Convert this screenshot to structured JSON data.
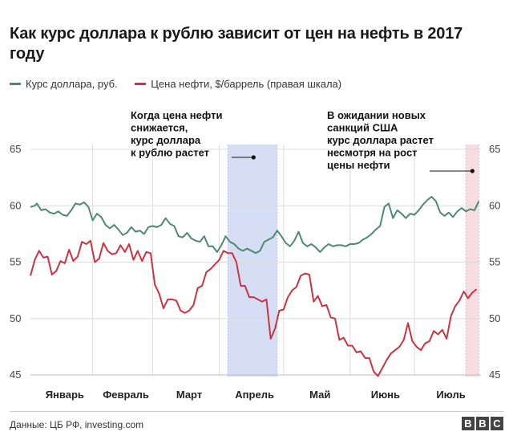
{
  "title": "Как курс доллара к рублю зависит от цен на нефть в 2017 году",
  "legend": [
    {
      "label": "Курс доллара, руб.",
      "color": "#4e8a71"
    },
    {
      "label": "Цена нефти, $/баррель (правая шкала)",
      "color": "#cc3340"
    }
  ],
  "source": "Данные: ЦБ РФ, investing.com",
  "logo": [
    "B",
    "B",
    "C"
  ],
  "chart_data": {
    "type": "line",
    "x_start": "2017-01-03",
    "x_end": "2017-07-31",
    "months": [
      {
        "label": "Январь",
        "start": "2017-01-01"
      },
      {
        "label": "Февраль",
        "start": "2017-02-01"
      },
      {
        "label": "Март",
        "start": "2017-03-01"
      },
      {
        "label": "Апрель",
        "start": "2017-04-01"
      },
      {
        "label": "Май",
        "start": "2017-05-01"
      },
      {
        "label": "Июнь",
        "start": "2017-06-01"
      },
      {
        "label": "Июль",
        "start": "2017-07-01"
      }
    ],
    "y_left": {
      "min": 45,
      "max": 65,
      "ticks": [
        45,
        50,
        55,
        60,
        65
      ]
    },
    "y_right": {
      "min": 45,
      "max": 65,
      "ticks": [
        45,
        50,
        55,
        60,
        65
      ]
    },
    "grid": true,
    "highlights": [
      {
        "from": "2017-04-05",
        "to": "2017-04-28",
        "color": "#d6def5"
      },
      {
        "from": "2017-07-25",
        "to": "2017-07-31",
        "color": "#f8dde0"
      }
    ],
    "annotations": [
      {
        "lines": [
          "Когда цена нефти",
          "снижается,",
          "курс доллара",
          "к рублю растет"
        ],
        "point": "2017-04-17"
      },
      {
        "lines": [
          "В ожидании новых",
          "санкций США",
          "курс доллара растет",
          "несмотря на рост",
          "цены нефти"
        ],
        "point": "2017-07-28"
      }
    ],
    "series": [
      {
        "name": "Курс доллара, руб.",
        "axis": "left",
        "color": "#4e8a71",
        "points": [
          [
            "2017-01-03",
            59.9
          ],
          [
            "2017-01-05",
            60.0
          ],
          [
            "2017-01-06",
            60.2
          ],
          [
            "2017-01-08",
            59.6
          ],
          [
            "2017-01-10",
            59.7
          ],
          [
            "2017-01-12",
            59.4
          ],
          [
            "2017-01-14",
            59.3
          ],
          [
            "2017-01-16",
            59.5
          ],
          [
            "2017-01-18",
            59.2
          ],
          [
            "2017-01-20",
            59.1
          ],
          [
            "2017-01-22",
            59.6
          ],
          [
            "2017-01-24",
            60.2
          ],
          [
            "2017-01-26",
            60.1
          ],
          [
            "2017-01-28",
            60.3
          ],
          [
            "2017-01-30",
            59.9
          ],
          [
            "2017-02-01",
            58.7
          ],
          [
            "2017-02-03",
            59.3
          ],
          [
            "2017-02-05",
            59.0
          ],
          [
            "2017-02-07",
            58.3
          ],
          [
            "2017-02-09",
            58.0
          ],
          [
            "2017-02-11",
            58.3
          ],
          [
            "2017-02-13",
            57.9
          ],
          [
            "2017-02-15",
            57.4
          ],
          [
            "2017-02-17",
            57.6
          ],
          [
            "2017-02-19",
            58.1
          ],
          [
            "2017-02-21",
            57.7
          ],
          [
            "2017-02-23",
            57.8
          ],
          [
            "2017-02-25",
            57.5
          ],
          [
            "2017-02-27",
            58.1
          ],
          [
            "2017-03-01",
            58.2
          ],
          [
            "2017-03-03",
            58.1
          ],
          [
            "2017-03-05",
            58.3
          ],
          [
            "2017-03-07",
            58.9
          ],
          [
            "2017-03-09",
            58.4
          ],
          [
            "2017-03-11",
            58.2
          ],
          [
            "2017-03-13",
            57.3
          ],
          [
            "2017-03-15",
            57.2
          ],
          [
            "2017-03-17",
            57.6
          ],
          [
            "2017-03-19",
            57.1
          ],
          [
            "2017-03-21",
            56.9
          ],
          [
            "2017-03-23",
            56.8
          ],
          [
            "2017-03-25",
            57.3
          ],
          [
            "2017-03-27",
            56.4
          ],
          [
            "2017-03-29",
            56.4
          ],
          [
            "2017-03-31",
            55.9
          ],
          [
            "2017-04-02",
            56.5
          ],
          [
            "2017-04-04",
            57.3
          ],
          [
            "2017-04-06",
            56.8
          ],
          [
            "2017-04-08",
            56.6
          ],
          [
            "2017-04-10",
            56.2
          ],
          [
            "2017-04-12",
            56.0
          ],
          [
            "2017-04-14",
            56.2
          ],
          [
            "2017-04-16",
            56.0
          ],
          [
            "2017-04-18",
            55.8
          ],
          [
            "2017-04-20",
            56.0
          ],
          [
            "2017-04-22",
            56.8
          ],
          [
            "2017-04-24",
            57.0
          ],
          [
            "2017-04-26",
            57.2
          ],
          [
            "2017-04-28",
            57.8
          ],
          [
            "2017-04-30",
            57.3
          ],
          [
            "2017-05-02",
            56.7
          ],
          [
            "2017-05-04",
            56.4
          ],
          [
            "2017-05-06",
            56.9
          ],
          [
            "2017-05-08",
            57.7
          ],
          [
            "2017-05-10",
            56.7
          ],
          [
            "2017-05-12",
            56.4
          ],
          [
            "2017-05-14",
            56.6
          ],
          [
            "2017-05-16",
            56.3
          ],
          [
            "2017-05-18",
            55.9
          ],
          [
            "2017-05-20",
            56.3
          ],
          [
            "2017-05-22",
            56.6
          ],
          [
            "2017-05-24",
            56.4
          ],
          [
            "2017-05-26",
            56.5
          ],
          [
            "2017-05-28",
            56.5
          ],
          [
            "2017-05-30",
            56.4
          ],
          [
            "2017-06-01",
            56.6
          ],
          [
            "2017-06-03",
            56.6
          ],
          [
            "2017-06-05",
            56.7
          ],
          [
            "2017-06-07",
            57.0
          ],
          [
            "2017-06-09",
            57.2
          ],
          [
            "2017-06-11",
            57.5
          ],
          [
            "2017-06-13",
            57.9
          ],
          [
            "2017-06-15",
            58.2
          ],
          [
            "2017-06-17",
            59.9
          ],
          [
            "2017-06-19",
            60.2
          ],
          [
            "2017-06-21",
            58.9
          ],
          [
            "2017-06-23",
            59.6
          ],
          [
            "2017-06-25",
            59.3
          ],
          [
            "2017-06-27",
            58.9
          ],
          [
            "2017-06-29",
            59.3
          ],
          [
            "2017-07-01",
            59.2
          ],
          [
            "2017-07-03",
            59.6
          ],
          [
            "2017-07-05",
            60.1
          ],
          [
            "2017-07-07",
            60.5
          ],
          [
            "2017-07-09",
            60.8
          ],
          [
            "2017-07-11",
            60.4
          ],
          [
            "2017-07-13",
            59.4
          ],
          [
            "2017-07-15",
            59.1
          ],
          [
            "2017-07-17",
            59.4
          ],
          [
            "2017-07-19",
            59.0
          ],
          [
            "2017-07-21",
            59.5
          ],
          [
            "2017-07-23",
            59.8
          ],
          [
            "2017-07-25",
            59.5
          ],
          [
            "2017-07-27",
            59.7
          ],
          [
            "2017-07-29",
            59.6
          ],
          [
            "2017-07-31",
            60.4
          ]
        ]
      },
      {
        "name": "Цена нефти, $/баррель (правая шкала)",
        "axis": "right",
        "color": "#cc3340",
        "points": [
          [
            "2017-01-03",
            53.8
          ],
          [
            "2017-01-05",
            55.2
          ],
          [
            "2017-01-07",
            56.0
          ],
          [
            "2017-01-09",
            55.4
          ],
          [
            "2017-01-11",
            55.5
          ],
          [
            "2017-01-13",
            53.9
          ],
          [
            "2017-01-15",
            54.2
          ],
          [
            "2017-01-17",
            55.1
          ],
          [
            "2017-01-19",
            54.9
          ],
          [
            "2017-01-21",
            56.1
          ],
          [
            "2017-01-23",
            55.1
          ],
          [
            "2017-01-25",
            55.5
          ],
          [
            "2017-01-27",
            56.8
          ],
          [
            "2017-01-29",
            56.6
          ],
          [
            "2017-01-31",
            56.9
          ],
          [
            "2017-02-02",
            55.0
          ],
          [
            "2017-02-04",
            55.3
          ],
          [
            "2017-02-06",
            56.7
          ],
          [
            "2017-02-08",
            56.0
          ],
          [
            "2017-02-10",
            55.7
          ],
          [
            "2017-02-12",
            55.8
          ],
          [
            "2017-02-14",
            56.5
          ],
          [
            "2017-02-16",
            55.9
          ],
          [
            "2017-02-18",
            56.6
          ],
          [
            "2017-02-20",
            55.2
          ],
          [
            "2017-02-22",
            56.0
          ],
          [
            "2017-02-24",
            55.1
          ],
          [
            "2017-02-26",
            55.9
          ],
          [
            "2017-02-28",
            55.8
          ],
          [
            "2017-03-02",
            53.0
          ],
          [
            "2017-03-04",
            52.2
          ],
          [
            "2017-03-06",
            50.9
          ],
          [
            "2017-03-08",
            51.7
          ],
          [
            "2017-03-10",
            51.7
          ],
          [
            "2017-03-12",
            51.6
          ],
          [
            "2017-03-14",
            50.7
          ],
          [
            "2017-03-16",
            50.5
          ],
          [
            "2017-03-18",
            50.7
          ],
          [
            "2017-03-20",
            51.2
          ],
          [
            "2017-03-22",
            52.7
          ],
          [
            "2017-03-24",
            52.9
          ],
          [
            "2017-03-26",
            54.1
          ],
          [
            "2017-03-28",
            54.4
          ],
          [
            "2017-03-30",
            54.8
          ],
          [
            "2017-04-01",
            55.2
          ],
          [
            "2017-04-03",
            56.0
          ],
          [
            "2017-04-05",
            55.8
          ],
          [
            "2017-04-07",
            55.8
          ],
          [
            "2017-04-09",
            55.0
          ],
          [
            "2017-04-11",
            52.9
          ],
          [
            "2017-04-13",
            52.9
          ],
          [
            "2017-04-15",
            51.9
          ],
          [
            "2017-04-17",
            51.9
          ],
          [
            "2017-04-19",
            51.7
          ],
          [
            "2017-04-21",
            51.5
          ],
          [
            "2017-04-23",
            51.7
          ],
          [
            "2017-04-25",
            48.2
          ],
          [
            "2017-04-27",
            49.1
          ],
          [
            "2017-04-29",
            50.7
          ],
          [
            "2017-05-01",
            50.8
          ],
          [
            "2017-05-03",
            51.9
          ],
          [
            "2017-05-05",
            52.5
          ],
          [
            "2017-05-07",
            52.8
          ],
          [
            "2017-05-09",
            53.8
          ],
          [
            "2017-05-11",
            54.0
          ],
          [
            "2017-05-13",
            53.9
          ],
          [
            "2017-05-15",
            51.5
          ],
          [
            "2017-05-17",
            52.0
          ],
          [
            "2017-05-19",
            51.1
          ],
          [
            "2017-05-21",
            51.2
          ],
          [
            "2017-05-23",
            50.1
          ],
          [
            "2017-05-25",
            50.0
          ],
          [
            "2017-05-27",
            48.1
          ],
          [
            "2017-05-29",
            48.3
          ],
          [
            "2017-05-31",
            47.6
          ],
          [
            "2017-06-02",
            47.6
          ],
          [
            "2017-06-04",
            47.0
          ],
          [
            "2017-06-06",
            47.1
          ],
          [
            "2017-06-08",
            46.5
          ],
          [
            "2017-06-10",
            46.5
          ],
          [
            "2017-06-12",
            45.3
          ],
          [
            "2017-06-14",
            44.9
          ],
          [
            "2017-06-16",
            45.6
          ],
          [
            "2017-06-18",
            46.3
          ],
          [
            "2017-06-20",
            46.9
          ],
          [
            "2017-06-22",
            47.2
          ],
          [
            "2017-06-24",
            47.5
          ],
          [
            "2017-06-26",
            48.1
          ],
          [
            "2017-06-28",
            49.6
          ],
          [
            "2017-06-30",
            48.0
          ],
          [
            "2017-07-02",
            47.5
          ],
          [
            "2017-07-04",
            47.2
          ],
          [
            "2017-07-06",
            47.8
          ],
          [
            "2017-07-08",
            48.0
          ],
          [
            "2017-07-10",
            48.9
          ],
          [
            "2017-07-12",
            48.6
          ],
          [
            "2017-07-14",
            49.0
          ],
          [
            "2017-07-16",
            48.2
          ],
          [
            "2017-07-18",
            50.2
          ],
          [
            "2017-07-20",
            51.1
          ],
          [
            "2017-07-22",
            51.6
          ],
          [
            "2017-07-24",
            52.4
          ],
          [
            "2017-07-26",
            51.8
          ],
          [
            "2017-07-28",
            52.3
          ],
          [
            "2017-07-30",
            52.6
          ]
        ]
      }
    ]
  }
}
